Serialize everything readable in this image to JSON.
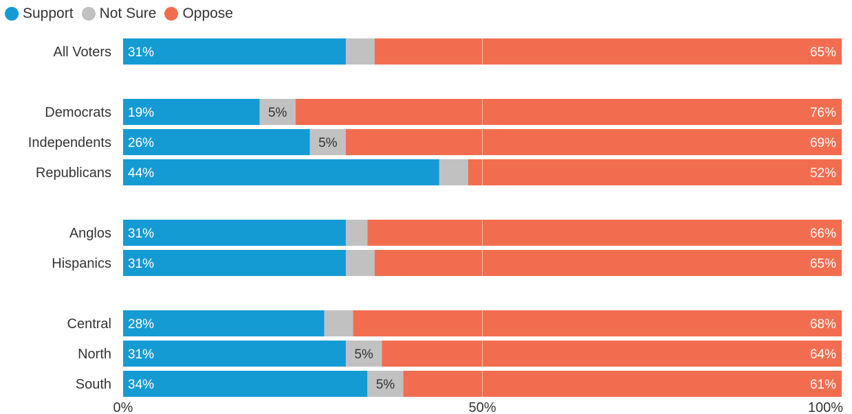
{
  "chart_data": {
    "type": "bar",
    "orientation": "horizontal",
    "stacked": true,
    "legend_position": "top-left",
    "xlim": [
      0,
      100
    ],
    "x_ticks": [
      0,
      50,
      100
    ],
    "x_tick_labels": [
      "0%",
      "50%",
      "100%"
    ],
    "categories": [
      "All Voters",
      "Democrats",
      "Independents",
      "Republicans",
      "Anglos",
      "Hispanics",
      "Central",
      "North",
      "South"
    ],
    "groups": [
      [
        "All Voters"
      ],
      [
        "Democrats",
        "Independents",
        "Republicans"
      ],
      [
        "Anglos",
        "Hispanics"
      ],
      [
        "Central",
        "North",
        "South"
      ]
    ],
    "series": [
      {
        "name": "Support",
        "color": "#159bd4",
        "values": [
          31,
          19,
          26,
          44,
          31,
          31,
          28,
          31,
          34
        ]
      },
      {
        "name": "Not Sure",
        "color": "#c1c1c1",
        "values": [
          4,
          5,
          5,
          4,
          3,
          4,
          4,
          5,
          5
        ]
      },
      {
        "name": "Oppose",
        "color": "#f26d50",
        "values": [
          65,
          76,
          69,
          52,
          66,
          65,
          68,
          64,
          61
        ]
      }
    ],
    "data_labels": {
      "Support": [
        "31%",
        "19%",
        "26%",
        "44%",
        "31%",
        "31%",
        "28%",
        "31%",
        "34%"
      ],
      "Not Sure": [
        "",
        "5%",
        "5%",
        "",
        "",
        "",
        "",
        "5%",
        "5%"
      ],
      "Oppose": [
        "65%",
        "76%",
        "69%",
        "52%",
        "66%",
        "65%",
        "68%",
        "64%",
        "61%"
      ]
    },
    "gridlines": [
      50
    ]
  }
}
